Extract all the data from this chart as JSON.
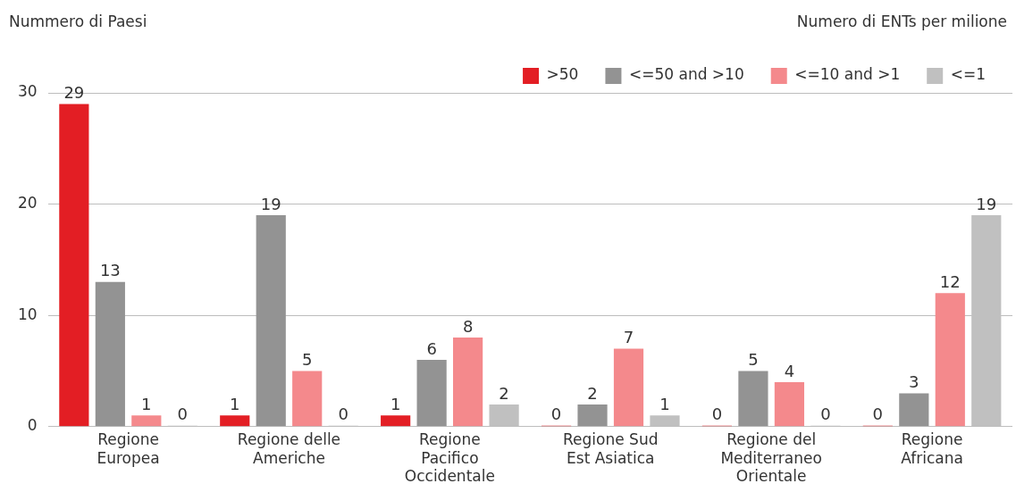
{
  "chart_data": {
    "type": "bar",
    "ylabel": "Nummero di Paesi",
    "legend_title": "Numero di ENTs per milione",
    "categories": [
      "Regione Europea",
      "Regione delle Americhe",
      "Regione Pacifico Occidentale",
      "Regione Sud Est Asiatica",
      "Regione del Mediterraneo Orientale",
      "Regione Africana"
    ],
    "series": [
      {
        "name": ">50",
        "color": "#e31e24",
        "values": [
          29,
          1,
          1,
          0,
          0,
          0
        ]
      },
      {
        "name": "<=50 and >10",
        "color": "#939393",
        "values": [
          13,
          19,
          6,
          2,
          5,
          3
        ]
      },
      {
        "name": "<=10 and >1",
        "color": "#f4898c",
        "values": [
          1,
          5,
          8,
          7,
          4,
          12
        ]
      },
      {
        "name": "<=1",
        "color": "#c0c0c0",
        "values": [
          0,
          0,
          2,
          1,
          0,
          19
        ]
      }
    ],
    "ylim": [
      0,
      30
    ],
    "yticks": [
      0,
      10,
      20,
      30
    ],
    "grid": "y",
    "legend": "top right",
    "data_labels": true
  }
}
